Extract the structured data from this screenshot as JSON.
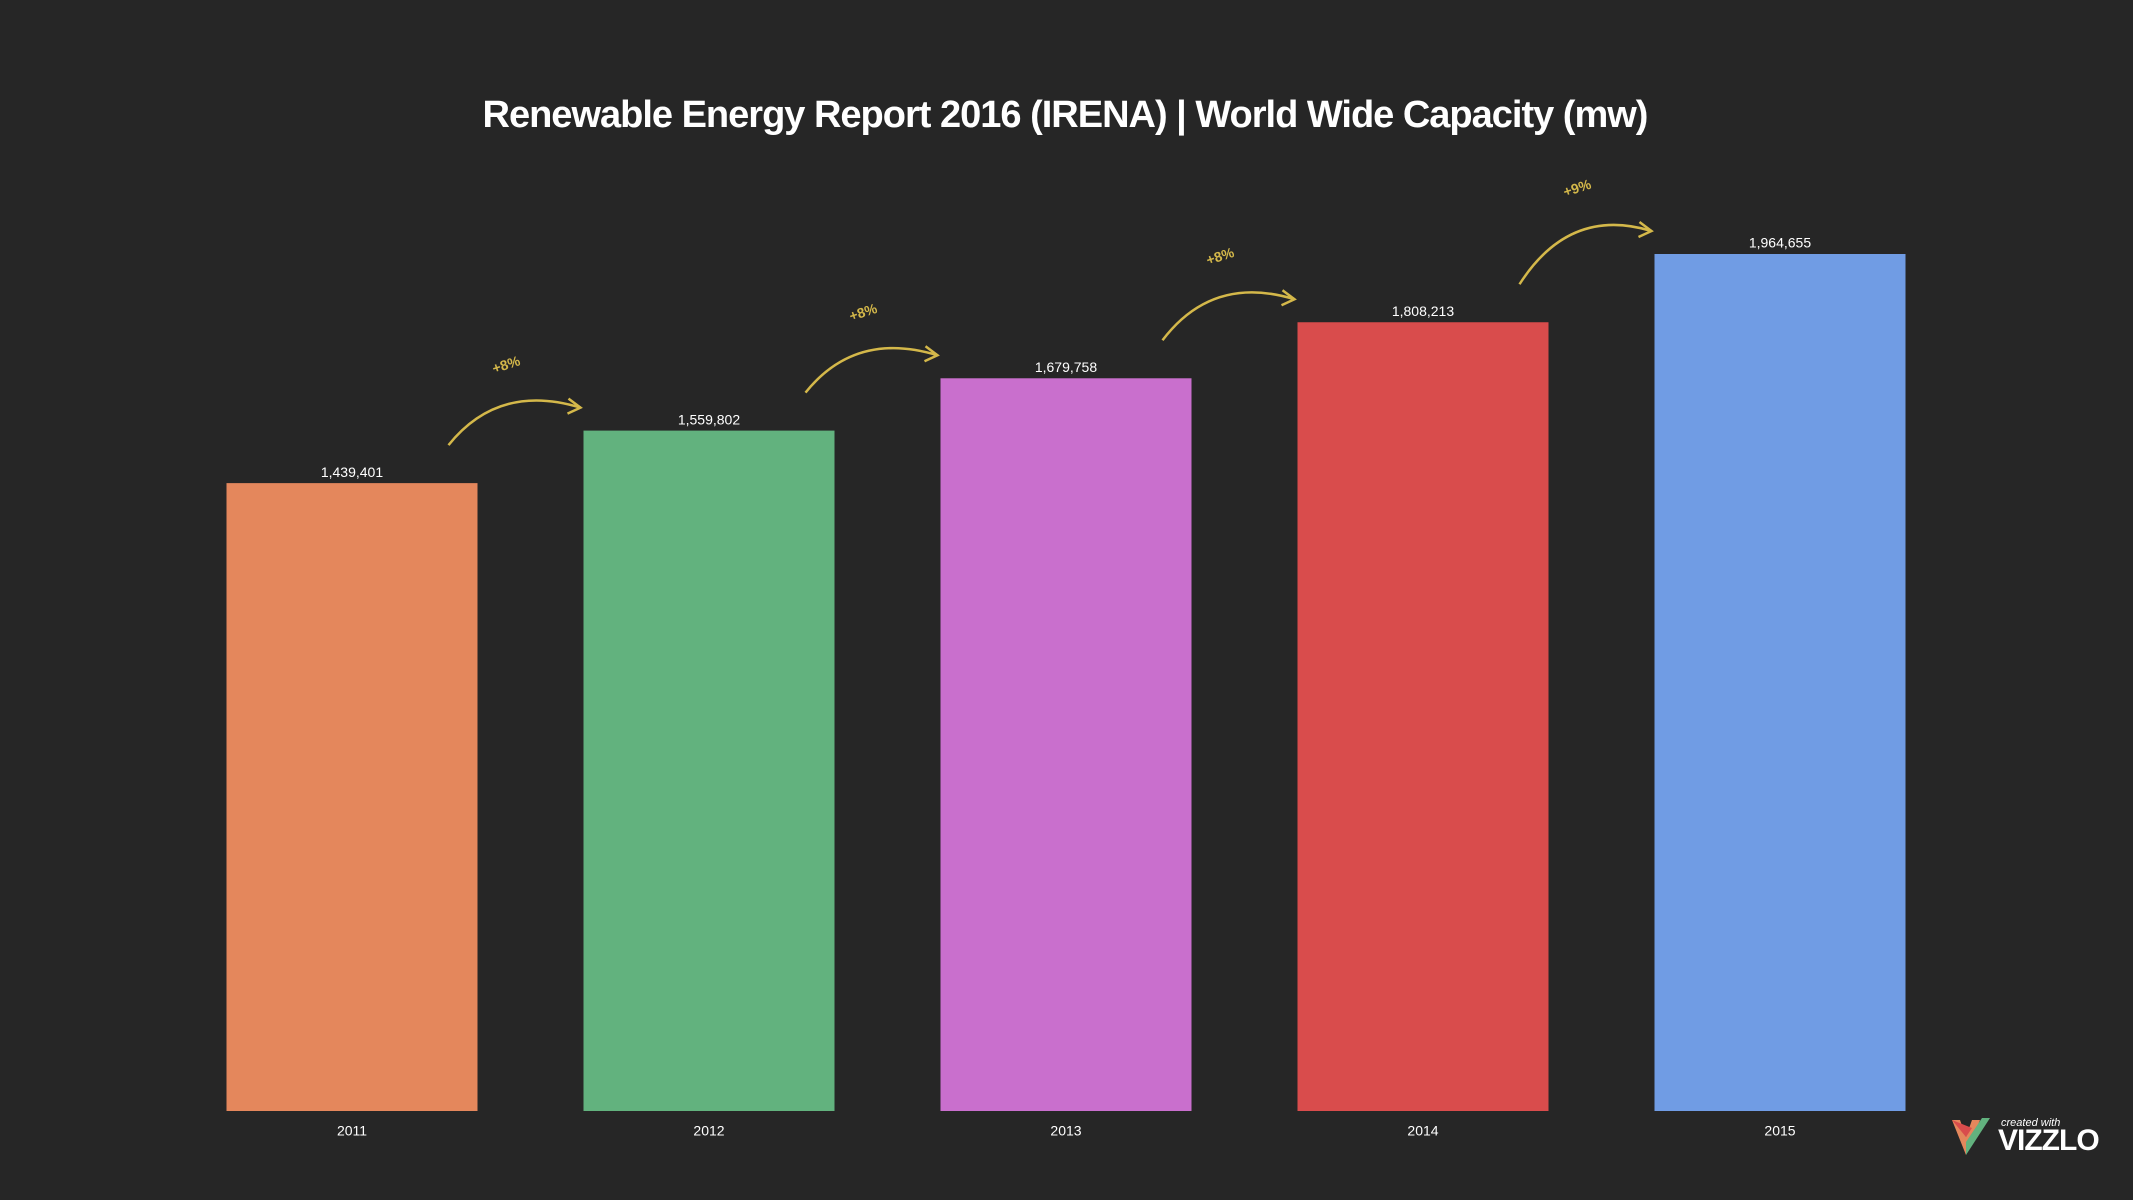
{
  "chart_data": {
    "type": "bar",
    "title": "Renewable Energy Report 2016 (IRENA) |  World Wide Capacity (mw)",
    "categories": [
      "2011",
      "2012",
      "2013",
      "2014",
      "2015"
    ],
    "values": [
      1439401,
      1559802,
      1679758,
      1808213,
      1964655
    ],
    "value_labels": [
      "1,439,401",
      "1,559,802",
      "1,679,758",
      "1,808,213",
      "1,964,655"
    ],
    "colors": [
      "#e4875c",
      "#62b27e",
      "#c96fcd",
      "#d94c4c",
      "#709ce4"
    ],
    "annotations": [
      "+8%",
      "+8%",
      "+8%",
      "+9%"
    ],
    "annotation_color": "#d4b84a"
  },
  "branding": {
    "caption": "created with",
    "name": "VIZZLO"
  }
}
